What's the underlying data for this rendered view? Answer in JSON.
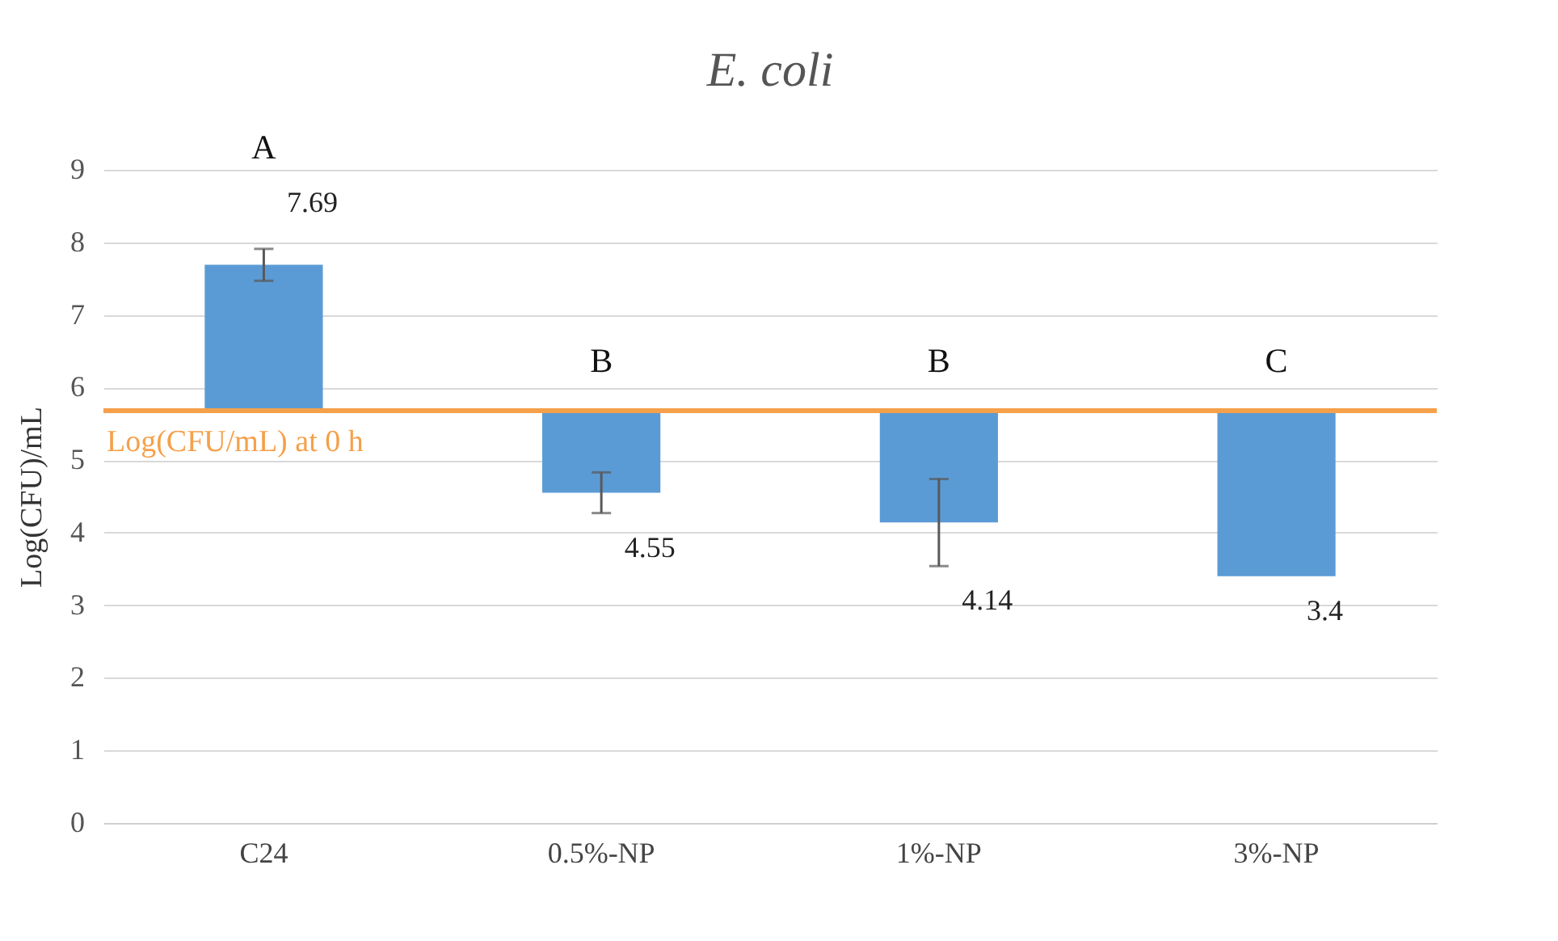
{
  "chart_data": {
    "type": "bar",
    "title": "E. coli",
    "ylabel": "Log(CFU)/mL",
    "categories": [
      "C24",
      "0.5%-NP",
      "1%-NP",
      "3%-NP"
    ],
    "base": [
      5.68,
      5.68,
      5.68,
      5.68
    ],
    "values": [
      2.01,
      -1.13,
      -1.54,
      -2.28
    ],
    "value_labels": [
      "7.69",
      "4.55",
      "4.14",
      "3.4"
    ],
    "errors": [
      0.22,
      0.28,
      0.6,
      null
    ],
    "color": "#5b9bd5",
    "ylim": [
      0,
      9
    ],
    "yticks": [
      0,
      1,
      2,
      3,
      4,
      5,
      6,
      7,
      8,
      9
    ],
    "grid": "y",
    "ref_lines": [
      {
        "axis": "y",
        "value": 5.68,
        "label": "Log(CFU/mL) at 0 h",
        "color": "#f5a04a"
      }
    ],
    "annotations": [
      "A",
      "B",
      "B",
      "C"
    ]
  }
}
